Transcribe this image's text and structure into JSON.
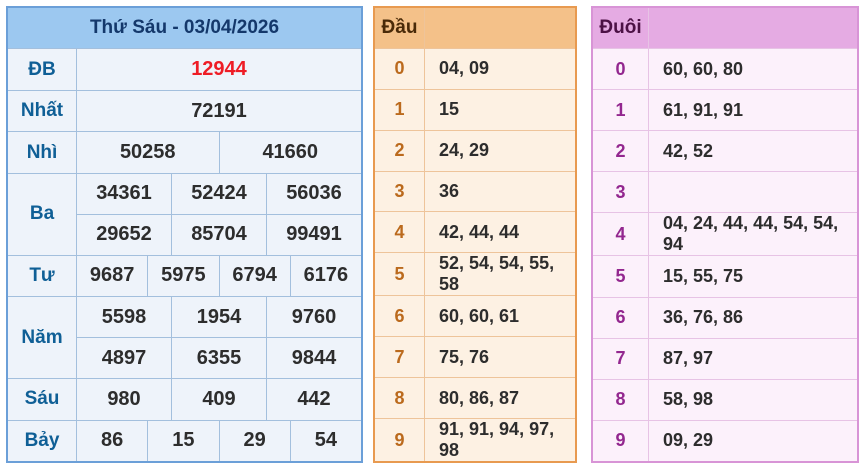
{
  "result_table": {
    "title": "Thứ Sáu - 03/04/2026",
    "rows": [
      {
        "label": "ĐB",
        "values": [
          "12944"
        ]
      },
      {
        "label": "Nhất",
        "values": [
          "72191"
        ]
      },
      {
        "label": "Nhì",
        "values": [
          "50258",
          "41660"
        ]
      },
      {
        "label": "Ba",
        "rows": [
          [
            "34361",
            "52424",
            "56036"
          ],
          [
            "29652",
            "85704",
            "99491"
          ]
        ]
      },
      {
        "label": "Tư",
        "values": [
          "9687",
          "5975",
          "6794",
          "6176"
        ]
      },
      {
        "label": "Năm",
        "rows": [
          [
            "5598",
            "1954",
            "9760"
          ],
          [
            "4897",
            "6355",
            "9844"
          ]
        ]
      },
      {
        "label": "Sáu",
        "values": [
          "980",
          "409",
          "442"
        ]
      },
      {
        "label": "Bảy",
        "values": [
          "86",
          "15",
          "29",
          "54"
        ]
      }
    ]
  },
  "dau_table": {
    "header": "Đầu",
    "rows": [
      {
        "digit": "0",
        "numbers": "04, 09"
      },
      {
        "digit": "1",
        "numbers": "15"
      },
      {
        "digit": "2",
        "numbers": "24, 29"
      },
      {
        "digit": "3",
        "numbers": "36"
      },
      {
        "digit": "4",
        "numbers": "42, 44, 44"
      },
      {
        "digit": "5",
        "numbers": "52, 54, 54, 55, 58"
      },
      {
        "digit": "6",
        "numbers": "60, 60, 61"
      },
      {
        "digit": "7",
        "numbers": "75, 76"
      },
      {
        "digit": "8",
        "numbers": "80, 86, 87"
      },
      {
        "digit": "9",
        "numbers": "91, 91, 94, 97, 98"
      }
    ]
  },
  "duoi_table": {
    "header": "Đuôi",
    "rows": [
      {
        "digit": "0",
        "numbers": "60, 60, 80"
      },
      {
        "digit": "1",
        "numbers": "61, 91, 91"
      },
      {
        "digit": "2",
        "numbers": "42, 52"
      },
      {
        "digit": "3",
        "numbers": ""
      },
      {
        "digit": "4",
        "numbers": "04, 24, 44, 44, 54, 54, 94"
      },
      {
        "digit": "5",
        "numbers": "15, 55, 75"
      },
      {
        "digit": "6",
        "numbers": "36, 76, 86"
      },
      {
        "digit": "7",
        "numbers": "87, 97"
      },
      {
        "digit": "8",
        "numbers": "58, 98"
      },
      {
        "digit": "9",
        "numbers": "09, 29"
      }
    ]
  },
  "colors": {
    "special_number": "#ee1c25",
    "blue_header_bg": "#9cc8f0",
    "blue_border": "#6b9fd8",
    "blue_label_text": "#0f5f96",
    "orange_header_bg": "#f4c189",
    "orange_border": "#e89a50",
    "orange_digit_text": "#bb6a1d",
    "pink_header_bg": "#e5abe3",
    "pink_border": "#d894d6",
    "pink_digit_text": "#93278f",
    "value_text": "#2d2d2d"
  }
}
